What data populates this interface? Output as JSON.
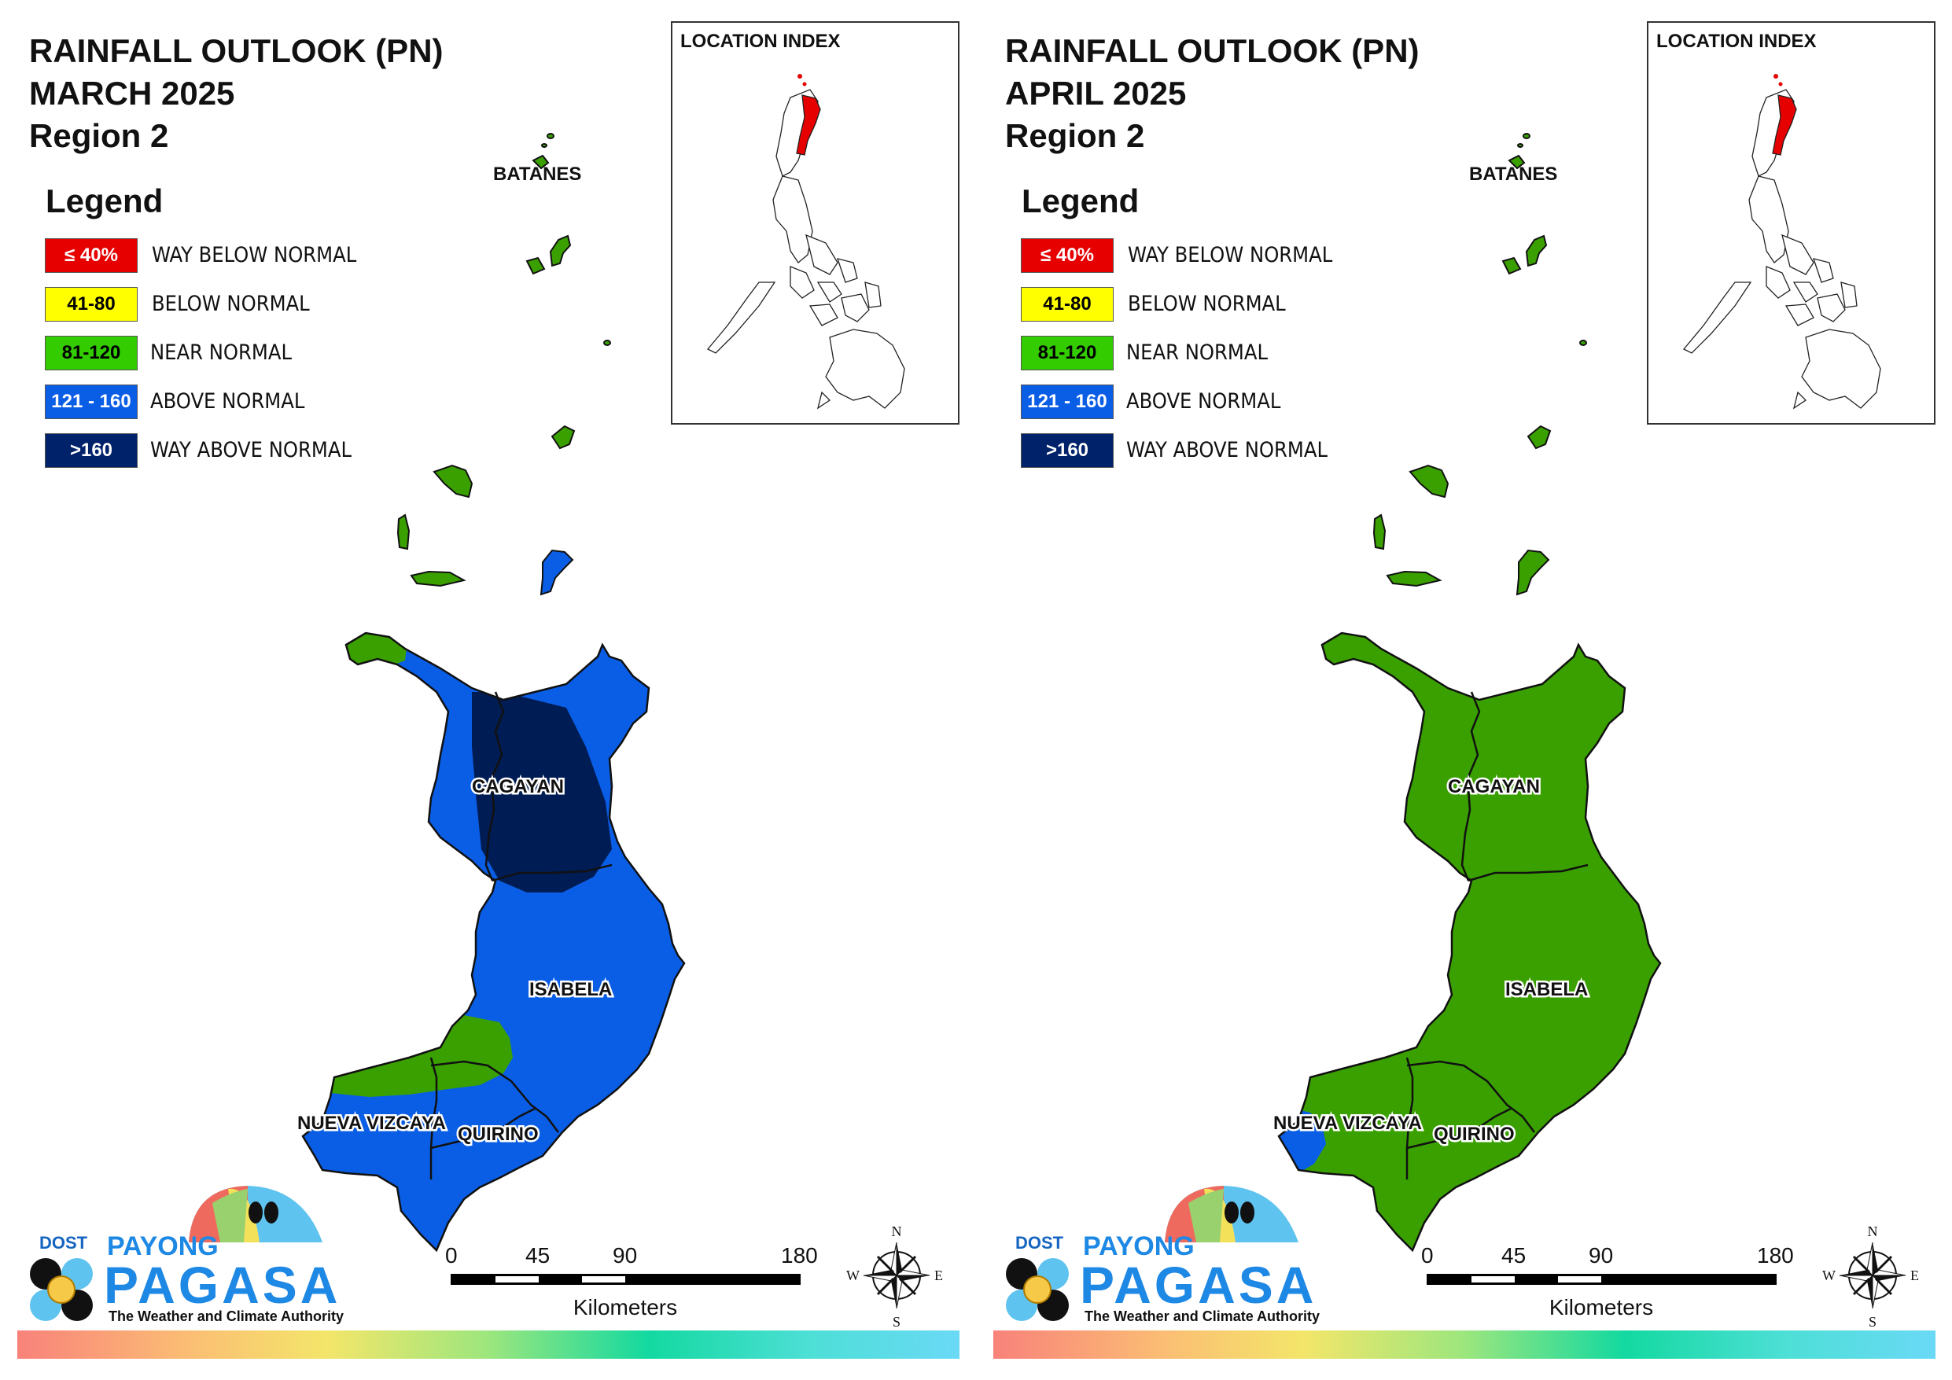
{
  "colors": {
    "way_below": "#e60000",
    "below": "#ffff00",
    "near": "#3aa000",
    "above": "#0a5ee6",
    "way_above": "#001c54",
    "highlight_region": "#e60000"
  },
  "legend": {
    "heading": "Legend",
    "items": [
      {
        "swatch": "≤ 40%",
        "label": "WAY BELOW NORMAL",
        "color": "#e60000",
        "text_color": "#ffffff"
      },
      {
        "swatch": "41-80",
        "label": "BELOW NORMAL",
        "color": "#ffff00",
        "text_color": "#000000"
      },
      {
        "swatch": "81-120",
        "label": "NEAR NORMAL",
        "color": "#33cc00",
        "text_color": "#000000"
      },
      {
        "swatch": "121 - 160",
        "label": "ABOVE NORMAL",
        "color": "#0a5ee6",
        "text_color": "#ffffff"
      },
      {
        "swatch": ">160",
        "label": "WAY ABOVE NORMAL",
        "color": "#00226b",
        "text_color": "#ffffff"
      }
    ]
  },
  "inset": {
    "title": "LOCATION INDEX"
  },
  "provinces": {
    "batanes": "BATANES",
    "cagayan": "CAGAYAN",
    "isabela": "ISABELA",
    "nueva_vizcaya": "NUEVA VIZCAYA",
    "quirino": "QUIRINO"
  },
  "scale": {
    "ticks": [
      "0",
      "45",
      "90",
      "180"
    ],
    "unit": "Kilometers"
  },
  "compass": {
    "n": "N",
    "s": "S",
    "e": "E",
    "w": "W"
  },
  "logo": {
    "dost": "DOST",
    "payong": "PAYONG",
    "pagasa": "PAGASA",
    "tagline": "The Weather and Climate Authority"
  },
  "panels": [
    {
      "title_lines": [
        "RAINFALL OUTLOOK (PN)",
        "MARCH 2025",
        "Region 2"
      ],
      "classes": {
        "base": "above",
        "way_above_zone": true,
        "near_normal_nw_cagayan": true,
        "near_normal_southwest_band": true,
        "above_islet": true,
        "above_nueva_vizcaya_tip": false
      }
    },
    {
      "title_lines": [
        "RAINFALL OUTLOOK (PN)",
        "APRIL 2025",
        "Region 2"
      ],
      "classes": {
        "base": "near",
        "way_above_zone": false,
        "near_normal_nw_cagayan": false,
        "near_normal_southwest_band": false,
        "above_islet": false,
        "above_nueva_vizcaya_tip": true
      }
    }
  ]
}
